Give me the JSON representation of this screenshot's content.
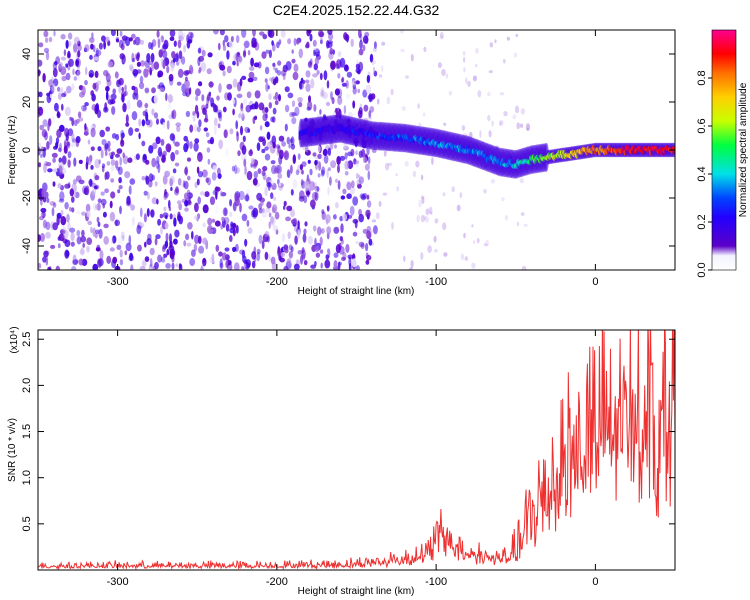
{
  "title": "C2E4.2025.152.22.44.G32",
  "chart_data": [
    {
      "type": "heatmap",
      "title": "C2E4.2025.152.22.44.G32",
      "xlabel": "Height of straight line (km)",
      "ylabel": "Frequency (Hz)",
      "xlim": [
        -350,
        50
      ],
      "ylim": [
        -50,
        50
      ],
      "xticks": [
        -300,
        -200,
        -100,
        0
      ],
      "yticks": [
        -40,
        -20,
        0,
        20,
        40
      ],
      "colorbar": {
        "label": "Normalized spectral amplitude",
        "range": [
          0,
          1
        ],
        "ticks": [
          0.0,
          0.2,
          0.4,
          0.6,
          0.8
        ],
        "colors": [
          "#ffffff",
          "#f2f2ff",
          "#5c00c8",
          "#2200ff",
          "#0044ff",
          "#00e0e8",
          "#00ff40",
          "#c8ff00",
          "#ffd000",
          "#ff7000",
          "#ff0000",
          "#ff0090"
        ]
      },
      "noise_region_x": [
        -350,
        -150
      ],
      "signal_track": {
        "x": [
          -185,
          -160,
          -140,
          -120,
          -100,
          -80,
          -60,
          -50,
          -40,
          -20,
          0,
          20,
          50
        ],
        "freq": [
          7,
          9,
          6,
          5,
          3,
          0,
          -5,
          -6,
          -4,
          -2,
          0,
          0,
          0
        ],
        "amplitude": [
          0.2,
          0.2,
          0.25,
          0.3,
          0.35,
          0.35,
          0.35,
          0.4,
          0.5,
          0.65,
          0.8,
          0.9,
          0.9
        ]
      },
      "grid": false
    },
    {
      "type": "line",
      "xlabel": "Height of straight line (km)",
      "ylabel": "SNR (10 * v/v)",
      "y_multiplier": "(x10⁴)",
      "xlim": [
        -350,
        50
      ],
      "ylim": [
        0,
        2.6
      ],
      "xticks": [
        -300,
        -200,
        -100,
        0
      ],
      "yticks": [
        0.5,
        1.0,
        1.5,
        2.0,
        2.5
      ],
      "color": "#ee3030",
      "series": [
        {
          "x": [
            -350,
            -300,
            -250,
            -200,
            -160,
            -140,
            -120,
            -105,
            -100,
            -92,
            -85,
            -75,
            -65,
            -55,
            -50,
            -45,
            -40,
            -35,
            -30,
            -25,
            -20,
            -15,
            -10,
            -5,
            0,
            5,
            10,
            15,
            20,
            25,
            30,
            34,
            36,
            37,
            38,
            40,
            44,
            50
          ],
          "y": [
            0.04,
            0.04,
            0.04,
            0.04,
            0.05,
            0.07,
            0.1,
            0.16,
            0.35,
            0.3,
            0.2,
            0.16,
            0.12,
            0.12,
            0.18,
            0.3,
            0.5,
            0.65,
            0.8,
            0.95,
            1.05,
            1.1,
            1.2,
            1.3,
            1.4,
            1.5,
            1.6,
            1.7,
            1.75,
            1.8,
            1.88,
            1.95,
            2.05,
            2.58,
            0.75,
            1.85,
            1.88,
            1.9
          ],
          "envelope_max": [
            0.07,
            0.08,
            0.08,
            0.09,
            0.1,
            0.14,
            0.2,
            0.3,
            0.52,
            0.5,
            0.32,
            0.25,
            0.2,
            0.22,
            0.4,
            0.7,
            1.05,
            1.3,
            1.55,
            1.8,
            1.9,
            2.0,
            2.1,
            2.15,
            2.2,
            2.1,
            2.1,
            2.05,
            2.05,
            2.0,
            2.02,
            2.05,
            2.1,
            2.58,
            0.75,
            1.92,
            1.9,
            1.92
          ]
        }
      ],
      "grid": false
    }
  ]
}
